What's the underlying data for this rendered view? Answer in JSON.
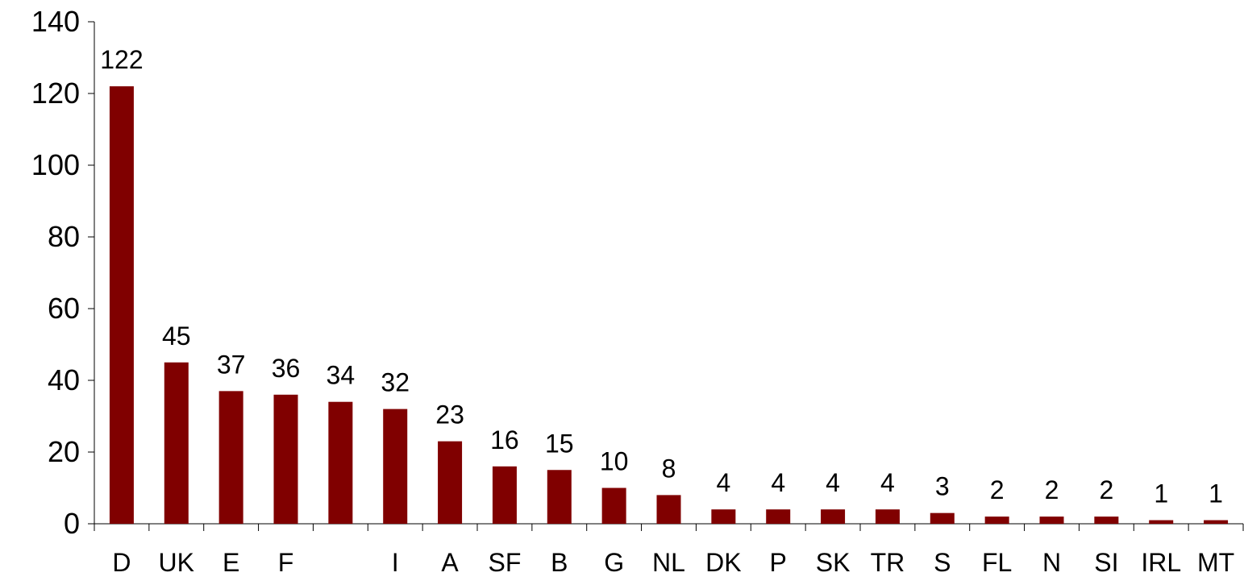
{
  "chart_data": {
    "type": "bar",
    "categories": [
      "D",
      "UK",
      "E",
      "F",
      "",
      "I",
      "A",
      "SF",
      "B",
      "G",
      "NL",
      "DK",
      "P",
      "SK",
      "TR",
      "S",
      "FL",
      "N",
      "SI",
      "IRL",
      "MT"
    ],
    "values": [
      122,
      45,
      37,
      36,
      34,
      32,
      23,
      16,
      15,
      10,
      8,
      4,
      4,
      4,
      4,
      3,
      2,
      2,
      2,
      1,
      1
    ],
    "data_labels": [
      "122",
      "45",
      "37",
      "36",
      "34",
      "32",
      "23",
      "16",
      "15",
      "10",
      "8",
      "4",
      "4",
      "4",
      "4",
      "3",
      "2",
      "2",
      "2",
      "1",
      "1"
    ],
    "title": "",
    "xlabel": "",
    "ylabel": "",
    "ylim": [
      0,
      140
    ],
    "yticks": [
      0,
      20,
      40,
      60,
      80,
      100,
      120,
      140
    ],
    "ytick_labels": [
      "0",
      "20",
      "40",
      "60",
      "80",
      "100",
      "120",
      "140"
    ],
    "grid": false,
    "legend": "none",
    "bar_color": "#800000"
  }
}
